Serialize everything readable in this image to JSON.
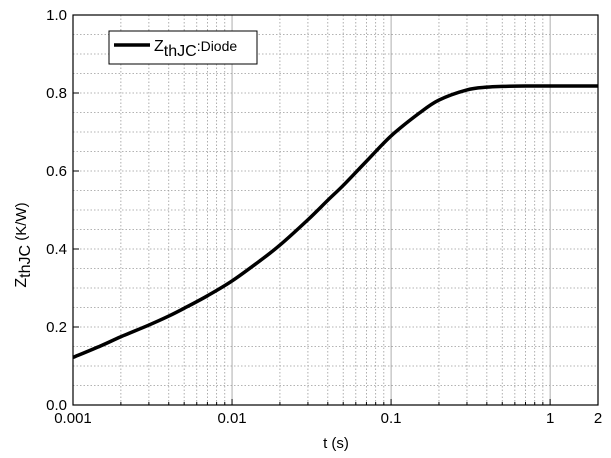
{
  "chart_data": {
    "type": "line",
    "title": "",
    "xlabel": "t (s)",
    "ylabel": {
      "main": "Z",
      "sub": "thJC",
      "unit": " (K/W)"
    },
    "xscale": "log",
    "xlim": [
      0.001,
      2
    ],
    "ylim": [
      0.0,
      1.0
    ],
    "grid": true,
    "x_ticks": [
      {
        "value": 0.001,
        "label": "0.001"
      },
      {
        "value": 0.01,
        "label": "0.01"
      },
      {
        "value": 0.1,
        "label": "0.1"
      },
      {
        "value": 1,
        "label": "1"
      },
      {
        "value": 2,
        "label": "2"
      }
    ],
    "y_ticks": [
      {
        "value": 0.0,
        "label": "0.0"
      },
      {
        "value": 0.2,
        "label": "0.2"
      },
      {
        "value": 0.4,
        "label": "0.4"
      },
      {
        "value": 0.6,
        "label": "0.6"
      },
      {
        "value": 0.8,
        "label": "0.8"
      },
      {
        "value": 1.0,
        "label": "1.0"
      }
    ],
    "legend": {
      "placement": "top-left",
      "main": "Z",
      "sub": "thJC",
      "suffix": ":Diode"
    },
    "series": [
      {
        "name": "ZthJC:Diode",
        "color": "#000000",
        "points": [
          [
            0.001,
            0.122
          ],
          [
            0.0015,
            0.152
          ],
          [
            0.002,
            0.175
          ],
          [
            0.003,
            0.205
          ],
          [
            0.004,
            0.228
          ],
          [
            0.005,
            0.248
          ],
          [
            0.007,
            0.28
          ],
          [
            0.01,
            0.318
          ],
          [
            0.015,
            0.37
          ],
          [
            0.02,
            0.41
          ],
          [
            0.03,
            0.475
          ],
          [
            0.04,
            0.525
          ],
          [
            0.05,
            0.563
          ],
          [
            0.07,
            0.625
          ],
          [
            0.1,
            0.69
          ],
          [
            0.15,
            0.748
          ],
          [
            0.2,
            0.782
          ],
          [
            0.3,
            0.808
          ],
          [
            0.4,
            0.815
          ],
          [
            0.5,
            0.817
          ],
          [
            0.7,
            0.818
          ],
          [
            1,
            0.818
          ],
          [
            2,
            0.818
          ]
        ]
      }
    ]
  }
}
